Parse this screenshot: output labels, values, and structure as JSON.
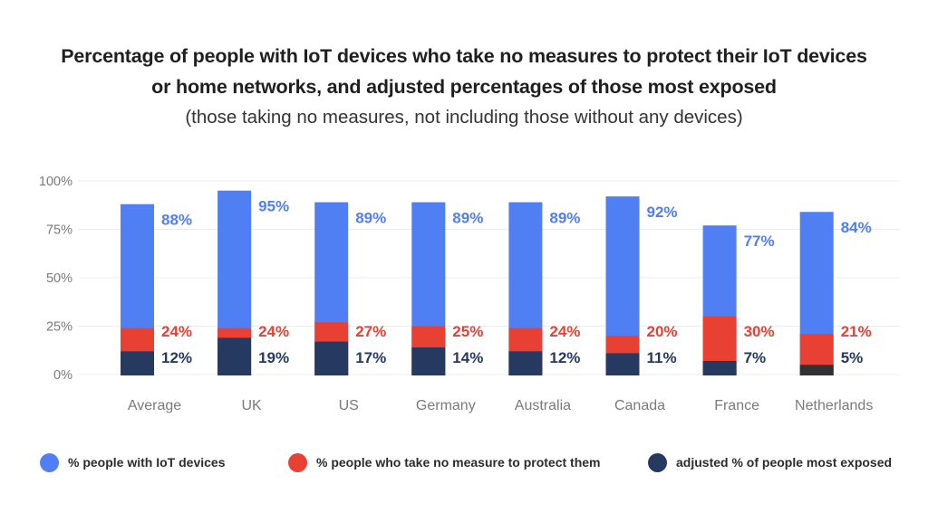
{
  "chart_data": {
    "type": "bar",
    "subtype": "overlapping-stacked",
    "title": "Percentage of people with IoT devices who take no measures to protect their IoT devices or home networks, and adjusted percentages of those most exposed",
    "title_lines": [
      "Percentage of people with IoT devices who take no measures to protect their IoT devices",
      "or home networks, and adjusted percentages of those most exposed"
    ],
    "subtitle": "(those taking no measures, not including those without any devices)",
    "xlabel": "",
    "ylabel": "",
    "ylim": [
      0,
      100
    ],
    "yticks": [
      0,
      25,
      50,
      75,
      100
    ],
    "ytick_labels": [
      "0%",
      "25%",
      "50%",
      "75%",
      "100%"
    ],
    "grid": true,
    "categories": [
      "Average",
      "UK",
      "US",
      "Germany",
      "Australia",
      "Canada",
      "France",
      "Netherlands"
    ],
    "series": [
      {
        "name": "% people with IoT  devices",
        "color": "#4f7ff2",
        "values": [
          88,
          95,
          89,
          89,
          89,
          92,
          77,
          84
        ]
      },
      {
        "name": "% people who take no measure to protect them",
        "color": "#e94034",
        "values": [
          24,
          24,
          27,
          25,
          24,
          20,
          30,
          21
        ]
      },
      {
        "name": "adjusted % of people most exposed",
        "color": "#253961",
        "values": [
          12,
          19,
          17,
          14,
          12,
          11,
          7,
          5
        ]
      }
    ],
    "data_labels": {
      "blue": [
        "88%",
        "95%",
        "89%",
        "89%",
        "89%",
        "92%",
        "77%",
        "84%"
      ],
      "red": [
        "24%",
        "24%",
        "27%",
        "25%",
        "24%",
        "20%",
        "30%",
        "21%"
      ],
      "navy": [
        "12%",
        "19%",
        "17%",
        "14%",
        "12%",
        "11%",
        "7%",
        "5%"
      ]
    },
    "legend_position": "bottom"
  },
  "colors": {
    "blue": "#4f7ff2",
    "red": "#e94034",
    "navy": "#253961",
    "navy_alt": "#2f3133",
    "grid": "#ececec",
    "axis_text": "#7a7a7a"
  },
  "legend": [
    {
      "label": "% people with IoT  devices",
      "color": "#4f7ff2"
    },
    {
      "label": "% people who take no measure to protect them",
      "color": "#e94034"
    },
    {
      "label": "adjusted % of people most exposed",
      "color": "#253961"
    }
  ]
}
